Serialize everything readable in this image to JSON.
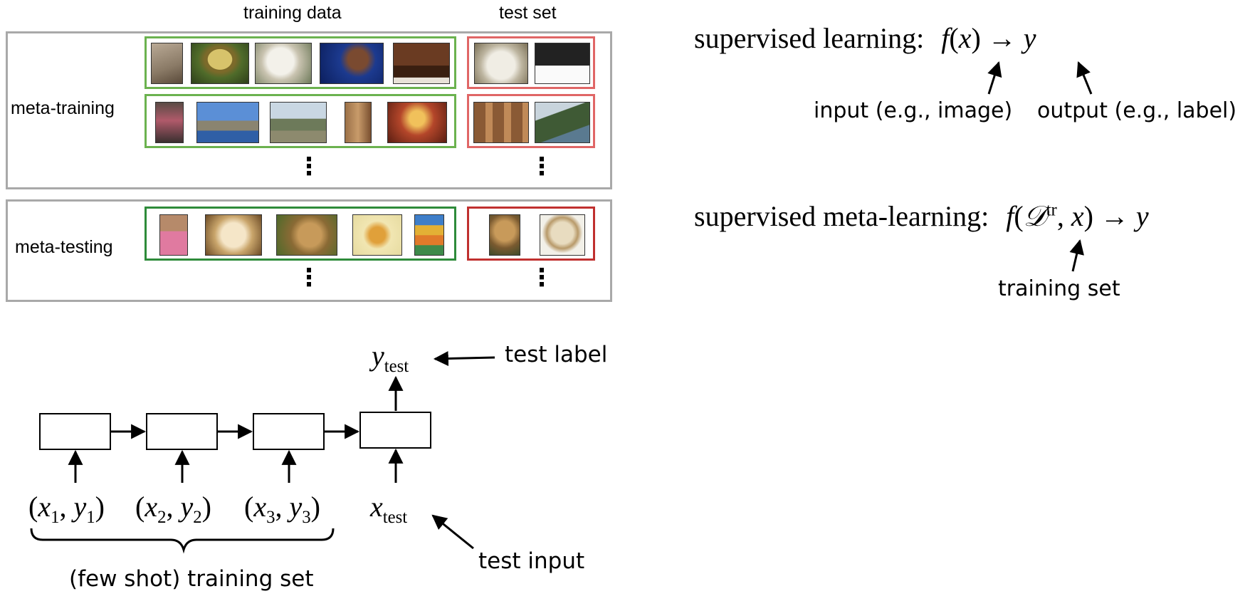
{
  "headers": {
    "training_data": "training data",
    "test_set": "test set"
  },
  "rows": {
    "meta_training": "meta-training",
    "meta_testing": "meta-testing"
  },
  "ellipsis": "⋮",
  "equations": {
    "supervised": {
      "prefix": "supervised learning:",
      "f": "f",
      "x": "x",
      "arrow": "→",
      "y": "y"
    },
    "meta": {
      "prefix": "supervised meta-learning:",
      "f": "f",
      "D": "𝒟",
      "tr": "tr",
      "x": "x",
      "arrow": "→",
      "y": "y"
    }
  },
  "annotations": {
    "input": "input (e.g., image)",
    "output": "output (e.g., label)",
    "training_set": "training set",
    "test_label": "test label",
    "test_input": "test input",
    "few_shot": "(few shot) training set"
  },
  "sequence": {
    "pairs": [
      {
        "x": "x",
        "y": "y",
        "i": "1"
      },
      {
        "x": "x",
        "y": "y",
        "i": "2"
      },
      {
        "x": "x",
        "y": "y",
        "i": "3"
      }
    ],
    "y_test": {
      "sym": "y",
      "sub": "test"
    },
    "x_test": {
      "sym": "x",
      "sub": "test"
    }
  },
  "colors": {
    "frame_gray": "#a9a9a9",
    "train_green": "#6bb24f",
    "test_red": "#e06666",
    "train_green_dark": "#2e8b3a",
    "test_red_dark": "#c0302f"
  }
}
